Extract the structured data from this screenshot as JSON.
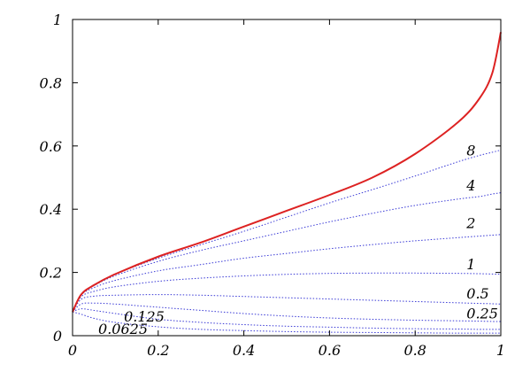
{
  "chart_data": {
    "type": "line",
    "title": "",
    "xlabel": "",
    "ylabel": "",
    "xlim": [
      0,
      1
    ],
    "ylim": [
      0,
      1
    ],
    "grid": false,
    "legend": "none (curves labelled inline)",
    "x_ticks": [
      "0",
      "0.2",
      "0.4",
      "0.6",
      "0.8",
      "1"
    ],
    "y_ticks": [
      "0",
      "0.2",
      "0.4",
      "0.6",
      "0.8",
      "1"
    ],
    "x": [
      0,
      0.02,
      0.05,
      0.1,
      0.2,
      0.3,
      0.4,
      0.5,
      0.6,
      0.7,
      0.8,
      0.9,
      0.95,
      0.98,
      1.0
    ],
    "series": [
      {
        "name": "",
        "color": "#dd2222",
        "style": "solid",
        "values": [
          0.075,
          0.13,
          0.16,
          0.195,
          0.25,
          0.295,
          0.345,
          0.395,
          0.445,
          0.5,
          0.575,
          0.675,
          0.75,
          0.83,
          0.96
        ]
      },
      {
        "name": "8",
        "color": "#3a3ad6",
        "style": "dotted",
        "label_pos": {
          "x": 0.92,
          "y": 0.57
        },
        "values": [
          0.075,
          0.13,
          0.16,
          0.195,
          0.245,
          0.288,
          0.33,
          0.375,
          0.42,
          0.462,
          0.505,
          0.55,
          0.57,
          0.58,
          0.587
        ]
      },
      {
        "name": "4",
        "color": "#3a3ad6",
        "style": "dotted",
        "label_pos": {
          "x": 0.92,
          "y": 0.46
        },
        "values": [
          0.075,
          0.13,
          0.158,
          0.19,
          0.235,
          0.27,
          0.3,
          0.33,
          0.36,
          0.387,
          0.412,
          0.432,
          0.44,
          0.448,
          0.452
        ]
      },
      {
        "name": "2",
        "color": "#3a3ad6",
        "style": "dotted",
        "label_pos": {
          "x": 0.92,
          "y": 0.34
        },
        "values": [
          0.075,
          0.128,
          0.152,
          0.175,
          0.205,
          0.225,
          0.245,
          0.26,
          0.275,
          0.288,
          0.3,
          0.31,
          0.315,
          0.318,
          0.32
        ]
      },
      {
        "name": "1",
        "color": "#3a3ad6",
        "style": "dotted",
        "label_pos": {
          "x": 0.92,
          "y": 0.21
        },
        "values": [
          0.075,
          0.123,
          0.14,
          0.155,
          0.172,
          0.182,
          0.189,
          0.194,
          0.197,
          0.198,
          0.198,
          0.197,
          0.196,
          0.195,
          0.194
        ]
      },
      {
        "name": "0.5",
        "color": "#3a3ad6",
        "style": "dotted",
        "label_pos": {
          "x": 0.92,
          "y": 0.118
        },
        "values": [
          0.075,
          0.115,
          0.125,
          0.128,
          0.13,
          0.128,
          0.124,
          0.12,
          0.116,
          0.112,
          0.108,
          0.104,
          0.102,
          0.101,
          0.1
        ]
      },
      {
        "name": "0.25",
        "color": "#3a3ad6",
        "style": "dotted",
        "label_pos": {
          "x": 0.92,
          "y": 0.055
        },
        "values": [
          0.075,
          0.1,
          0.103,
          0.1,
          0.09,
          0.08,
          0.07,
          0.062,
          0.056,
          0.052,
          0.049,
          0.047,
          0.046,
          0.045,
          0.045
        ]
      },
      {
        "name": "0.125",
        "color": "#3a3ad6",
        "style": "dotted",
        "label_pos": {
          "x": 0.12,
          "y": 0.045
        },
        "values": [
          0.075,
          0.085,
          0.08,
          0.07,
          0.052,
          0.042,
          0.035,
          0.03,
          0.027,
          0.024,
          0.022,
          0.021,
          0.02,
          0.02,
          0.02
        ]
      },
      {
        "name": "0.0625",
        "color": "#3a3ad6",
        "style": "dotted",
        "label_pos": {
          "x": 0.06,
          "y": 0.005
        },
        "values": [
          0.075,
          0.068,
          0.055,
          0.042,
          0.028,
          0.02,
          0.016,
          0.013,
          0.011,
          0.01,
          0.009,
          0.008,
          0.008,
          0.008,
          0.008
        ]
      }
    ]
  }
}
